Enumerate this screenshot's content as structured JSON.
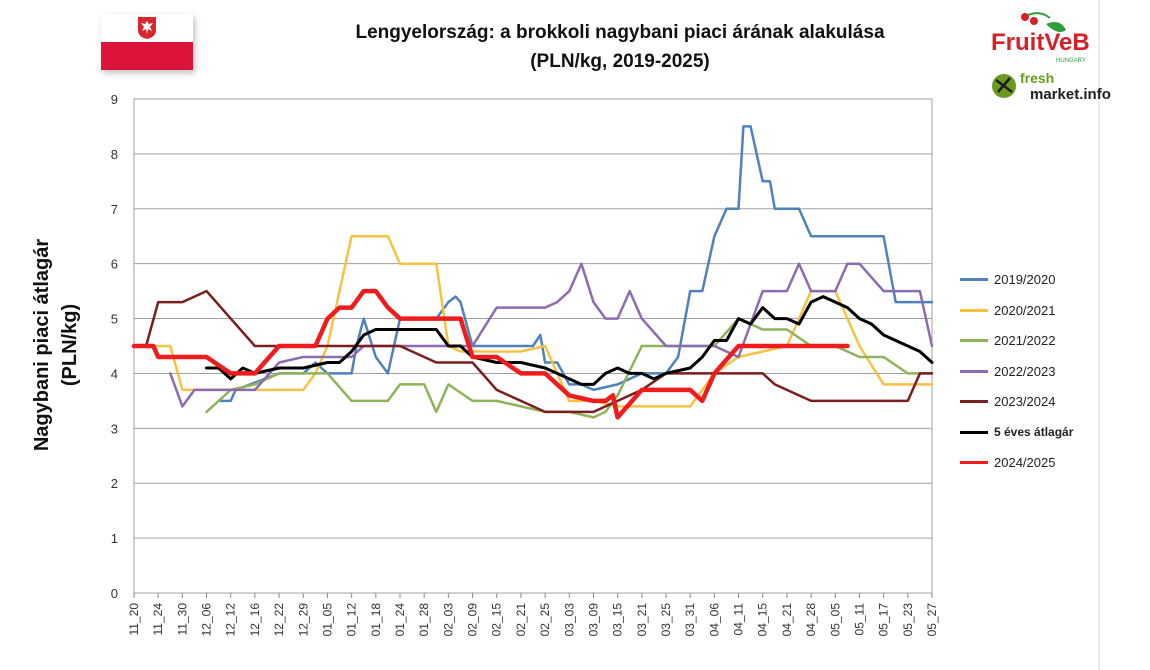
{
  "title_line1": "Lengyelország: a brokkoli nagybani piaci árának alakulása",
  "title_line2": "(PLN/kg, 2019-2025)",
  "ylabel_line1": "Nagybani piaci átlagár",
  "ylabel_line2": "(PLN/kg)",
  "logos": {
    "fruitveb_text": "FruitVeB",
    "fruitveb_sub": "HUNGARY",
    "freshmarket_text1": "fresh",
    "freshmarket_text2": "market.info"
  },
  "colors": {
    "flag_red": "#dc143c",
    "fruitveb_red": "#d62027",
    "fruitveb_green": "#2e9e3a"
  },
  "legend": [
    {
      "label": "2019/2020",
      "color": "#4f81bd"
    },
    {
      "label": "2020/2021",
      "color": "#f5c242"
    },
    {
      "label": "2021/2022",
      "color": "#8fb35a"
    },
    {
      "label": "2022/2023",
      "color": "#8c6bb1"
    },
    {
      "label": "2023/2024",
      "color": "#7a1e1e"
    },
    {
      "label": "5 éves átlagár",
      "color": "#000000"
    },
    {
      "label": "2024/2025",
      "color": "#ee1c1c"
    }
  ],
  "chart_data": {
    "type": "line",
    "title": "Lengyelország: a brokkoli nagybani piaci árának alakulása (PLN/kg, 2019-2025)",
    "ylabel": "Nagybani piaci átlagár (PLN/kg)",
    "xlabel": "",
    "ylim": [
      0,
      9
    ],
    "yticks": [
      "0",
      "1",
      "2",
      "3",
      "4",
      "5",
      "6",
      "7",
      "8",
      "9"
    ],
    "grid": true,
    "legend_position": "right",
    "categories": [
      "11_20",
      "11_24",
      "11_30",
      "12_06",
      "12_12",
      "12_16",
      "12_22",
      "12_29",
      "01_05",
      "01_12",
      "01_18",
      "01_24",
      "01_28",
      "02_03",
      "02_09",
      "02_15",
      "02_21",
      "02_25",
      "03_03",
      "03_09",
      "03_15",
      "03_21",
      "03_25",
      "03_31",
      "04_06",
      "04_11",
      "04_15",
      "04_21",
      "04_28",
      "05_05",
      "05_11",
      "05_17",
      "05_23",
      "05_27"
    ],
    "series": [
      {
        "name": "2019/2020",
        "color": "#4f81bd",
        "width": 2.5,
        "x": [
          3.5,
          4,
          4.2,
          6,
          7,
          7.5,
          8,
          9,
          9.2,
          9.5,
          10,
          10.5,
          11,
          11.5,
          12,
          12.5,
          13,
          13.3,
          13.5,
          14,
          15,
          16,
          16.5,
          16.8,
          17,
          17.5,
          18,
          18.5,
          19,
          20,
          21,
          22,
          22.5,
          23,
          23.5,
          24,
          24.5,
          25,
          25.2,
          25.5,
          26,
          26.3,
          26.5,
          27,
          27.5,
          28,
          28.5,
          29,
          29.5,
          30,
          31,
          31.5,
          32,
          33
        ],
        "y": [
          3.5,
          3.5,
          3.7,
          4.0,
          4.0,
          4.2,
          4.0,
          4.0,
          4.5,
          5.0,
          4.3,
          4.0,
          5.0,
          5.0,
          5.0,
          5.0,
          5.3,
          5.4,
          5.3,
          4.5,
          4.5,
          4.5,
          4.5,
          4.7,
          4.2,
          4.2,
          3.8,
          3.8,
          3.7,
          3.8,
          4.0,
          4.0,
          4.3,
          5.5,
          5.5,
          6.5,
          7.0,
          7.0,
          8.5,
          8.5,
          7.5,
          7.5,
          7.0,
          7.0,
          7.0,
          6.5,
          6.5,
          6.5,
          6.5,
          6.5,
          6.5,
          5.3,
          5.3,
          5.3
        ]
      },
      {
        "name": "2020/2021",
        "color": "#f5c242",
        "width": 2.5,
        "x": [
          0,
          1.5,
          2,
          3,
          4,
          5,
          6,
          7,
          7.5,
          8,
          8.5,
          9,
          9.5,
          10,
          10.5,
          11,
          11.5,
          12,
          12.5,
          13,
          13.5,
          14,
          15,
          16,
          17,
          18,
          19,
          20,
          21,
          22,
          23,
          24,
          25,
          26,
          27,
          28,
          29,
          30,
          31,
          32,
          33
        ],
        "y": [
          4.5,
          4.5,
          3.7,
          3.7,
          3.7,
          3.7,
          3.7,
          3.7,
          4.0,
          4.5,
          5.5,
          6.5,
          6.5,
          6.5,
          6.5,
          6.0,
          6.0,
          6.0,
          6.0,
          4.5,
          4.4,
          4.4,
          4.4,
          4.4,
          4.5,
          3.5,
          3.5,
          3.4,
          3.4,
          3.4,
          3.4,
          4.0,
          4.3,
          4.4,
          4.5,
          5.5,
          5.5,
          4.5,
          3.8,
          3.8,
          3.8
        ]
      },
      {
        "name": "2021/2022",
        "color": "#8fb35a",
        "width": 2.5,
        "x": [
          3,
          3.5,
          4,
          5,
          6,
          7,
          8,
          9,
          10,
          10.5,
          11,
          11.5,
          12,
          12.5,
          13,
          14,
          15,
          16,
          17,
          18,
          19,
          19.5,
          20,
          21,
          22,
          23,
          24,
          25,
          26,
          27,
          28,
          29,
          30,
          31,
          32,
          33
        ],
        "y": [
          3.3,
          3.5,
          3.7,
          3.8,
          4.0,
          4.0,
          4.0,
          3.5,
          3.5,
          3.5,
          3.8,
          3.8,
          3.8,
          3.3,
          3.8,
          3.5,
          3.5,
          3.4,
          3.3,
          3.3,
          3.2,
          3.3,
          3.6,
          4.5,
          4.5,
          4.5,
          4.5,
          5.0,
          4.8,
          4.8,
          4.5,
          4.5,
          4.3,
          4.3,
          4.0,
          4.0
        ]
      },
      {
        "name": "2022/2023",
        "color": "#8c6bb1",
        "width": 2.5,
        "x": [
          1.5,
          2,
          2.5,
          3,
          4,
          5,
          6,
          7,
          8,
          9,
          9.5,
          10,
          11,
          12,
          13,
          14,
          15,
          16,
          17,
          17.5,
          18,
          18.5,
          19,
          19.5,
          20,
          20.5,
          21,
          22,
          23,
          24,
          25,
          26,
          27,
          27.5,
          28,
          29,
          29.5,
          30,
          31,
          32,
          32.5,
          33
        ],
        "y": [
          4.0,
          3.4,
          3.7,
          3.7,
          3.7,
          3.7,
          4.2,
          4.3,
          4.3,
          4.3,
          4.5,
          4.5,
          4.5,
          4.5,
          4.5,
          4.5,
          5.2,
          5.2,
          5.2,
          5.3,
          5.5,
          6.0,
          5.3,
          5.0,
          5.0,
          5.5,
          5.0,
          4.5,
          4.5,
          4.5,
          4.3,
          5.5,
          5.5,
          6.0,
          5.5,
          5.5,
          6.0,
          6.0,
          5.5,
          5.5,
          5.5,
          4.5
        ]
      },
      {
        "name": "2023/2024",
        "color": "#7a1e1e",
        "width": 2.5,
        "x": [
          0.5,
          1,
          2,
          3,
          4,
          5,
          6,
          7,
          8,
          9,
          10,
          11,
          12,
          12.5,
          13,
          14,
          15,
          16,
          17,
          18,
          19,
          20,
          21,
          22,
          23,
          24,
          25,
          26,
          26.5,
          27,
          28,
          29,
          30,
          31,
          32,
          32.5,
          33
        ],
        "y": [
          4.5,
          5.3,
          5.3,
          5.5,
          5.0,
          4.5,
          4.5,
          4.5,
          4.5,
          4.5,
          4.5,
          4.5,
          4.3,
          4.2,
          4.2,
          4.2,
          3.7,
          3.5,
          3.3,
          3.3,
          3.3,
          3.5,
          3.7,
          4.0,
          4.0,
          4.0,
          4.0,
          4.0,
          3.8,
          3.7,
          3.5,
          3.5,
          3.5,
          3.5,
          3.5,
          4.0,
          4.0
        ]
      },
      {
        "name": "5 éves átlagár",
        "color": "#000000",
        "width": 3,
        "x": [
          3,
          3.5,
          4,
          4.5,
          5,
          6,
          7,
          8,
          8.5,
          9,
          9.5,
          10,
          10.5,
          11,
          11.5,
          12,
          12.5,
          13,
          13.5,
          14,
          15,
          16,
          17,
          17.5,
          18,
          18.5,
          19,
          19.5,
          20,
          20.5,
          21,
          21.5,
          22,
          23,
          23.5,
          24,
          24.5,
          25,
          25.5,
          26,
          26.5,
          27,
          27.5,
          28,
          28.5,
          29,
          29.5,
          30,
          30.5,
          31,
          31.5,
          32,
          32.5,
          33
        ],
        "y": [
          4.1,
          4.1,
          3.9,
          4.1,
          4.0,
          4.1,
          4.1,
          4.2,
          4.2,
          4.4,
          4.7,
          4.8,
          4.8,
          4.8,
          4.8,
          4.8,
          4.8,
          4.5,
          4.5,
          4.3,
          4.2,
          4.2,
          4.1,
          4.0,
          3.9,
          3.8,
          3.8,
          4.0,
          4.1,
          4.0,
          4.0,
          3.9,
          4.0,
          4.1,
          4.3,
          4.6,
          4.6,
          5.0,
          4.9,
          5.2,
          5.0,
          5.0,
          4.9,
          5.3,
          5.4,
          5.3,
          5.2,
          5.0,
          4.9,
          4.7,
          4.6,
          4.5,
          4.4,
          4.2
        ]
      },
      {
        "name": "2024/2025",
        "color": "#ee1c1c",
        "width": 4.5,
        "x": [
          0,
          0.5,
          0.8,
          1,
          2,
          3,
          4,
          5,
          6,
          7,
          7.5,
          8,
          8.5,
          9,
          9.5,
          10,
          10.5,
          11,
          12,
          13,
          13.5,
          14,
          15,
          16,
          17,
          18,
          19,
          19.5,
          19.8,
          20,
          21,
          22,
          22.5,
          23,
          23.5,
          24,
          25,
          26,
          27,
          28,
          29,
          29.5
        ],
        "y": [
          4.5,
          4.5,
          4.5,
          4.3,
          4.3,
          4.3,
          4.0,
          4.0,
          4.5,
          4.5,
          4.5,
          5.0,
          5.2,
          5.2,
          5.5,
          5.5,
          5.2,
          5.0,
          5.0,
          5.0,
          5.0,
          4.3,
          4.3,
          4.0,
          4.0,
          3.6,
          3.5,
          3.5,
          3.6,
          3.2,
          3.7,
          3.7,
          3.7,
          3.7,
          3.5,
          4.0,
          4.5,
          4.5,
          4.5,
          4.5,
          4.5,
          4.5
        ]
      }
    ]
  }
}
